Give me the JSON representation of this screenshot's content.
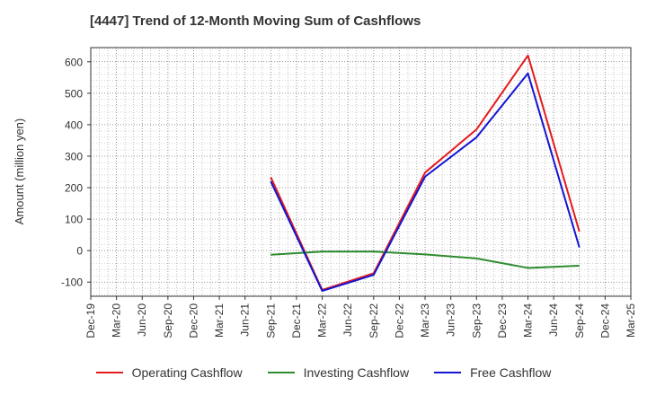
{
  "chart_data": {
    "type": "line",
    "title": "[4447]  Trend of 12-Month Moving Sum of Cashflows",
    "xlabel": "",
    "ylabel": "Amount (million yen)",
    "categories": [
      "Dec-19",
      "Mar-20",
      "Jun-20",
      "Sep-20",
      "Dec-20",
      "Mar-21",
      "Jun-21",
      "Sep-21",
      "Dec-21",
      "Mar-22",
      "Jun-22",
      "Sep-22",
      "Dec-22",
      "Mar-23",
      "Jun-23",
      "Sep-23",
      "Dec-23",
      "Mar-24",
      "Jun-24",
      "Sep-24",
      "Dec-24",
      "Mar-25"
    ],
    "yticks": [
      -100,
      0,
      100,
      200,
      300,
      400,
      500,
      600
    ],
    "ylim": [
      -145,
      645
    ],
    "grid": true,
    "legend_position": "bottom",
    "series": [
      {
        "name": "Operating Cashflow",
        "color": "#e41a1c",
        "values": [
          null,
          null,
          null,
          null,
          null,
          null,
          null,
          233,
          null,
          -125,
          null,
          -72,
          null,
          248,
          null,
          385,
          null,
          620,
          null,
          60,
          null,
          null
        ]
      },
      {
        "name": "Investing Cashflow",
        "color": "#2e8b2e",
        "values": [
          null,
          null,
          null,
          null,
          null,
          null,
          null,
          -13,
          null,
          -3,
          null,
          -3,
          null,
          -12,
          null,
          -25,
          null,
          -55,
          null,
          -48,
          null,
          null
        ]
      },
      {
        "name": "Free Cashflow",
        "color": "#1414d2",
        "values": [
          null,
          null,
          null,
          null,
          null,
          null,
          null,
          220,
          null,
          -128,
          null,
          -77,
          null,
          235,
          null,
          360,
          null,
          563,
          null,
          10,
          null,
          null
        ]
      }
    ]
  }
}
